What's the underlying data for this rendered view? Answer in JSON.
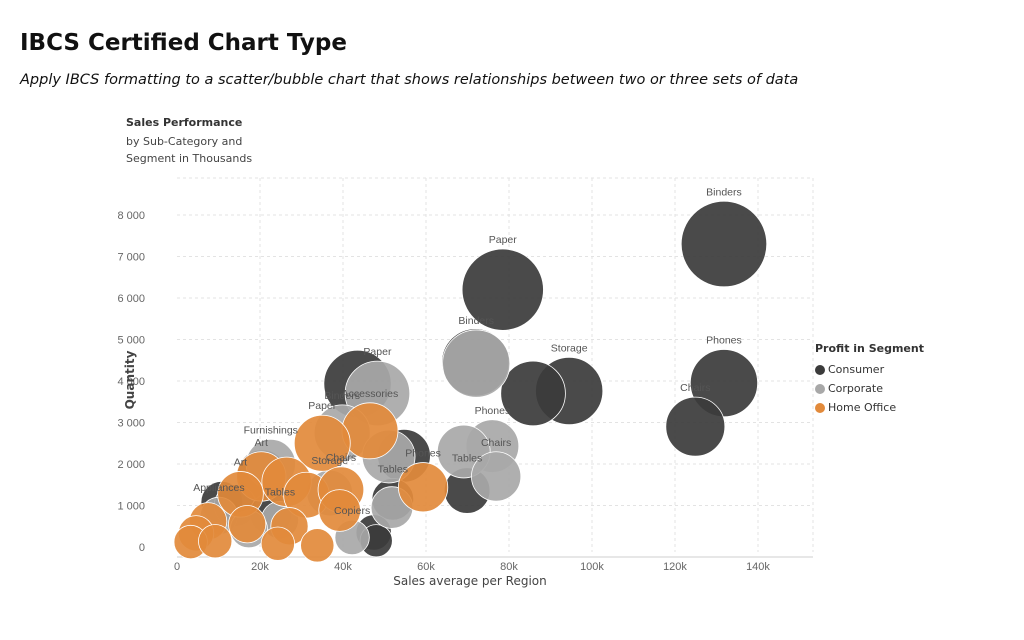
{
  "page": {
    "title": "IBCS Certified Chart Type",
    "subtitle": "Apply IBCS formatting to a scatter/bubble chart that shows relationships between two or three sets of data"
  },
  "chart_data": {
    "type": "scatter",
    "title": "Sales Performance",
    "subtitle": "by Sub-Category and Segment in Thousands",
    "xlabel": "Sales average per Region",
    "ylabel": "Quantity",
    "xlim": [
      0,
      152000
    ],
    "ylim": [
      0,
      8500
    ],
    "x_ticks": [
      0,
      20000,
      40000,
      60000,
      80000,
      100000,
      120000,
      140000
    ],
    "x_tick_labels": [
      "0",
      "20k",
      "40k",
      "60k",
      "80k",
      "100k",
      "120k",
      "140k"
    ],
    "y_ticks": [
      0,
      1000,
      2000,
      3000,
      4000,
      5000,
      6000,
      7000,
      8000
    ],
    "y_tick_labels": [
      "0",
      "1 000",
      "2 000",
      "3 000",
      "4 000",
      "5 000",
      "6 000",
      "7 000",
      "8 000"
    ],
    "grid": true,
    "legend_title": "Profit in Segment",
    "legend_position": "right",
    "series": [
      {
        "name": "Consumer",
        "color": "#3b3b3b",
        "points": [
          {
            "label": "Binders",
            "x": 131800,
            "y": 7300,
            "size": 10.5
          },
          {
            "label": "Paper",
            "x": 78500,
            "y": 6200,
            "size": 9.5
          },
          {
            "label": "Phones",
            "x": 131800,
            "y": 3950,
            "size": 6.5
          },
          {
            "label": "Chairs",
            "x": 124900,
            "y": 2900,
            "size": 5
          },
          {
            "label": "Storage",
            "x": 94500,
            "y": 3760,
            "size": 6.5
          },
          {
            "label": "",
            "x": 85800,
            "y": 3700,
            "size": 6
          },
          {
            "label": "",
            "x": 71900,
            "y": 4450,
            "size": 6.5
          },
          {
            "label": "",
            "x": 43500,
            "y": 3930,
            "size": 6.5
          },
          {
            "label": "",
            "x": 54700,
            "y": 2200,
            "size": 4
          },
          {
            "label": "Tables",
            "x": 69900,
            "y": 1360,
            "size": 3
          },
          {
            "label": "Tables",
            "x": 52000,
            "y": 1150,
            "size": 2.5
          },
          {
            "label": "",
            "x": 20500,
            "y": 1750,
            "size": 3.5
          },
          {
            "label": "",
            "x": 10800,
            "y": 1080,
            "size": 2.5
          },
          {
            "label": "",
            "x": 14000,
            "y": 1000,
            "size": 2.5
          },
          {
            "label": "",
            "x": 22600,
            "y": 800,
            "size": 2.5
          },
          {
            "label": "",
            "x": 47400,
            "y": 350,
            "size": 1.8
          },
          {
            "label": "",
            "x": 48000,
            "y": 150,
            "size": 1.5
          }
        ]
      },
      {
        "name": "Corporate",
        "color": "#a8a8a8",
        "points": [
          {
            "label": "Binders",
            "x": 72100,
            "y": 4420,
            "size": 6.5
          },
          {
            "label": "Paper",
            "x": 48300,
            "y": 3700,
            "size": 6
          },
          {
            "label": "Binders",
            "x": 39800,
            "y": 2750,
            "size": 4.5
          },
          {
            "label": "Phones",
            "x": 76000,
            "y": 2430,
            "size": 4
          },
          {
            "label": "",
            "x": 69100,
            "y": 2300,
            "size": 4
          },
          {
            "label": "Chairs",
            "x": 76900,
            "y": 1700,
            "size": 3.5
          },
          {
            "label": "",
            "x": 51000,
            "y": 2180,
            "size": 4
          },
          {
            "label": "Furnishings",
            "x": 22600,
            "y": 2000,
            "size": 3.5
          },
          {
            "label": "Storage",
            "x": 36800,
            "y": 1300,
            "size": 3
          },
          {
            "label": "",
            "x": 51800,
            "y": 950,
            "size": 2.5
          },
          {
            "label": "Appliances",
            "x": 10100,
            "y": 750,
            "size": 2
          },
          {
            "label": "Tables",
            "x": 24800,
            "y": 650,
            "size": 2
          },
          {
            "label": "",
            "x": 17300,
            "y": 430,
            "size": 2
          },
          {
            "label": "Copiers",
            "x": 42200,
            "y": 230,
            "size": 1.7
          }
        ]
      },
      {
        "name": "Home Office",
        "color": "#e28a3b",
        "points": [
          {
            "label": "Accessories",
            "x": 46500,
            "y": 2800,
            "size": 4.5
          },
          {
            "label": "Paper",
            "x": 35000,
            "y": 2500,
            "size": 4.5
          },
          {
            "label": "Art",
            "x": 20300,
            "y": 1700,
            "size": 3.5
          },
          {
            "label": "",
            "x": 26400,
            "y": 1570,
            "size": 3.5
          },
          {
            "label": "Phones",
            "x": 59300,
            "y": 1440,
            "size": 3.5
          },
          {
            "label": "Art",
            "x": 15300,
            "y": 1270,
            "size": 3
          },
          {
            "label": "",
            "x": 31200,
            "y": 1250,
            "size": 3
          },
          {
            "label": "Chairs",
            "x": 39500,
            "y": 1380,
            "size": 3
          },
          {
            "label": "",
            "x": 39200,
            "y": 880,
            "size": 2.5
          },
          {
            "label": "",
            "x": 16900,
            "y": 550,
            "size": 2
          },
          {
            "label": "",
            "x": 27100,
            "y": 500,
            "size": 2
          },
          {
            "label": "",
            "x": 7500,
            "y": 620,
            "size": 2
          },
          {
            "label": "",
            "x": 4600,
            "y": 330,
            "size": 1.8
          },
          {
            "label": "",
            "x": 3300,
            "y": 120,
            "size": 1.6
          },
          {
            "label": "",
            "x": 9200,
            "y": 140,
            "size": 1.6
          },
          {
            "label": "",
            "x": 24300,
            "y": 80,
            "size": 1.6
          },
          {
            "label": "",
            "x": 33800,
            "y": 40,
            "size": 1.6
          }
        ]
      }
    ]
  }
}
